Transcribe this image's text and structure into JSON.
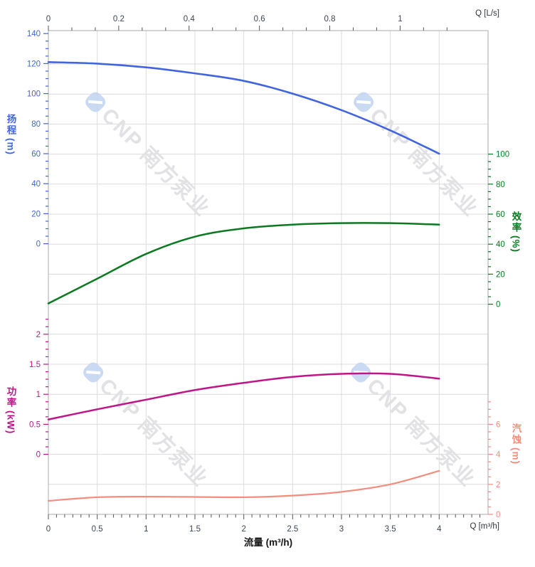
{
  "watermark": {
    "text": "CNP 南方泵业",
    "logo_color": "#c2d4f1",
    "text_color": "#e2e2e6"
  },
  "chart_data": {
    "type": "line",
    "title": "",
    "grid": {
      "visible": true,
      "color": "#dcdcdc",
      "border_color": "#ababab"
    },
    "tick_label_color": "#3b4556",
    "x_axis_bottom": {
      "label": "流量 (m³/h)",
      "unit_label": "Q [m³/h]",
      "ticks": [
        0,
        0.5,
        1,
        1.5,
        2,
        2.5,
        3,
        3.5,
        4
      ],
      "range": [
        0,
        4.5
      ],
      "minor_step": 0.083333
    },
    "x_axis_top": {
      "unit_label": "Q [L/s]",
      "ticks": [
        0,
        0.2,
        0.4,
        0.6,
        0.8,
        1
      ],
      "range": [
        0,
        1.25
      ],
      "minor_step": 0.066667
    },
    "y_axes": [
      {
        "id": "head",
        "label": "扬程",
        "unit": "(m)",
        "color": "#4164e0",
        "side": "left",
        "ticks": [
          0,
          20,
          40,
          60,
          80,
          100,
          120,
          140
        ],
        "minor_step": 5,
        "range": [
          0,
          140
        ]
      },
      {
        "id": "efficiency",
        "label": "效率",
        "unit": "(%)",
        "color": "#097a1f",
        "side": "right",
        "ticks": [
          0,
          20,
          40,
          60,
          80,
          100
        ],
        "minor_step": 5,
        "range": [
          0,
          100
        ]
      },
      {
        "id": "power",
        "label": "功率",
        "unit": "(kW)",
        "color": "#c01589",
        "side": "left",
        "ticks": [
          0,
          0.5,
          1,
          1.5,
          2
        ],
        "minor_step": 0.125,
        "range": [
          0,
          2.25
        ]
      },
      {
        "id": "npsh",
        "label": "汽蚀",
        "unit": "(m)",
        "color": "#f48d7c",
        "side": "right",
        "ticks": [
          0,
          2,
          4,
          6
        ],
        "minor_step": 0.5,
        "range": [
          0,
          7.5
        ]
      }
    ],
    "series": [
      {
        "id": "head",
        "axis": "head",
        "color": "#4164e0",
        "width": 2.6,
        "points": [
          [
            0,
            121
          ],
          [
            0.5,
            120
          ],
          [
            1,
            117.5
          ],
          [
            1.5,
            113.5
          ],
          [
            2,
            108.5
          ],
          [
            2.5,
            100
          ],
          [
            3,
            89
          ],
          [
            3.5,
            75.5
          ],
          [
            4,
            60
          ]
        ]
      },
      {
        "id": "efficiency",
        "axis": "efficiency",
        "color": "#097a1f",
        "width": 2.5,
        "points": [
          [
            0,
            0.5
          ],
          [
            0.5,
            17
          ],
          [
            1,
            33.5
          ],
          [
            1.5,
            45
          ],
          [
            2,
            50.5
          ],
          [
            2.5,
            53
          ],
          [
            3,
            54
          ],
          [
            3.5,
            54
          ],
          [
            4,
            53
          ]
        ]
      },
      {
        "id": "power",
        "axis": "power",
        "color": "#c01589",
        "width": 2.5,
        "points": [
          [
            0,
            0.58
          ],
          [
            0.5,
            0.75
          ],
          [
            1,
            0.91
          ],
          [
            1.5,
            1.07
          ],
          [
            2,
            1.19
          ],
          [
            2.5,
            1.29
          ],
          [
            3,
            1.34
          ],
          [
            3.5,
            1.34
          ],
          [
            4,
            1.26
          ]
        ]
      },
      {
        "id": "npsh",
        "axis": "npsh",
        "color": "#f48d7c",
        "width": 2.2,
        "points": [
          [
            0,
            0.9
          ],
          [
            0.5,
            1.14
          ],
          [
            1,
            1.18
          ],
          [
            1.5,
            1.16
          ],
          [
            2,
            1.14
          ],
          [
            2.5,
            1.25
          ],
          [
            3,
            1.5
          ],
          [
            3.5,
            2.0
          ],
          [
            4,
            2.9
          ]
        ]
      }
    ]
  }
}
